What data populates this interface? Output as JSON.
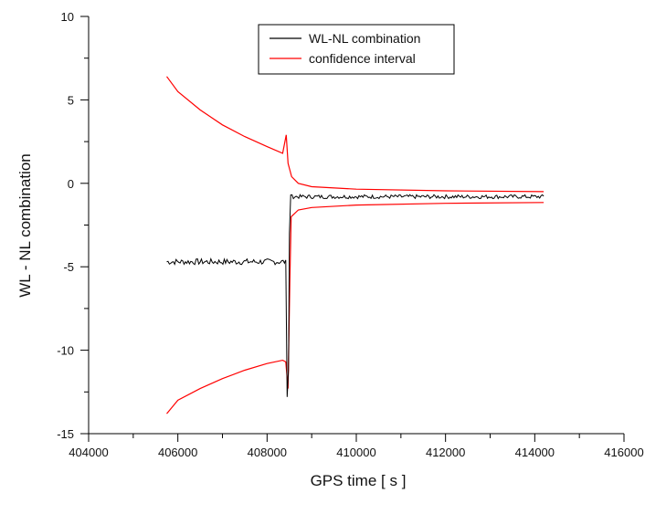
{
  "chart_data": {
    "type": "line",
    "xlabel": "GPS time [ s ]",
    "ylabel": "WL - NL combination",
    "xlim": [
      404000,
      416000
    ],
    "ylim": [
      -15,
      10
    ],
    "x_ticks": [
      404000,
      406000,
      408000,
      410000,
      412000,
      414000,
      416000
    ],
    "x_tick_labels": [
      "404000",
      "406000",
      "408000",
      "410000",
      "412000",
      "414000",
      "416000"
    ],
    "y_ticks": [
      -15,
      -10,
      -5,
      0,
      5,
      10
    ],
    "y_tick_labels": [
      "-15",
      "-10",
      "-5",
      "0",
      "5",
      "10"
    ],
    "grid": false,
    "legend_position": "top-center",
    "series": [
      {
        "name": "WL-NL combination",
        "color": "#000000",
        "segments": [
          {
            "x_start": 405750,
            "x_end": 408400,
            "mean": -4.7,
            "noise_amplitude": 0.18
          },
          {
            "x_start": 408530,
            "x_end": 414200,
            "mean": -0.8,
            "noise_amplitude": 0.12
          }
        ],
        "spike": [
          {
            "x": 408400,
            "y": -4.7
          },
          {
            "x": 408420,
            "y": -4.6
          },
          {
            "x": 408450,
            "y": -12.8
          },
          {
            "x": 408480,
            "y": -11.2
          },
          {
            "x": 408500,
            "y": -3.0
          },
          {
            "x": 408530,
            "y": -0.7
          }
        ]
      },
      {
        "name": "confidence interval",
        "color": "#ff0000",
        "upper": [
          {
            "x": 405750,
            "y": 6.4
          },
          {
            "x": 406000,
            "y": 5.5
          },
          {
            "x": 406500,
            "y": 4.4
          },
          {
            "x": 407000,
            "y": 3.5
          },
          {
            "x": 407500,
            "y": 2.8
          },
          {
            "x": 408000,
            "y": 2.2
          },
          {
            "x": 408350,
            "y": 1.8
          },
          {
            "x": 408430,
            "y": 2.9
          },
          {
            "x": 408470,
            "y": 1.2
          },
          {
            "x": 408550,
            "y": 0.4
          },
          {
            "x": 408700,
            "y": 0.0
          },
          {
            "x": 409000,
            "y": -0.2
          },
          {
            "x": 410000,
            "y": -0.35
          },
          {
            "x": 412000,
            "y": -0.45
          },
          {
            "x": 414200,
            "y": -0.5
          }
        ],
        "lower": [
          {
            "x": 405750,
            "y": -13.8
          },
          {
            "x": 406000,
            "y": -13.0
          },
          {
            "x": 406500,
            "y": -12.3
          },
          {
            "x": 407000,
            "y": -11.7
          },
          {
            "x": 407500,
            "y": -11.2
          },
          {
            "x": 408000,
            "y": -10.8
          },
          {
            "x": 408350,
            "y": -10.6
          },
          {
            "x": 408420,
            "y": -10.7
          },
          {
            "x": 408470,
            "y": -12.3
          },
          {
            "x": 408510,
            "y": -6.0
          },
          {
            "x": 408540,
            "y": -2.0
          },
          {
            "x": 408700,
            "y": -1.6
          },
          {
            "x": 409000,
            "y": -1.45
          },
          {
            "x": 410000,
            "y": -1.3
          },
          {
            "x": 412000,
            "y": -1.2
          },
          {
            "x": 414200,
            "y": -1.15
          }
        ]
      }
    ]
  }
}
